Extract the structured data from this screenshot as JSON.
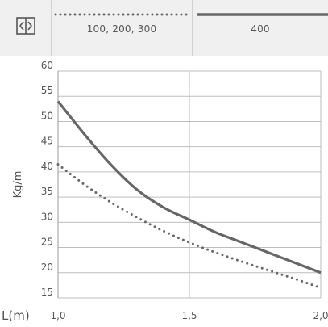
{
  "header": {
    "icon": "resize-horizontal-icon",
    "legend": [
      {
        "label": "100, 200, 300",
        "style": "dotted",
        "color": "#666666"
      },
      {
        "label": "400",
        "style": "solid",
        "color": "#666666"
      }
    ]
  },
  "chart_data": {
    "type": "line",
    "xlabel": "L(m)",
    "ylabel": "Kg/m",
    "xlim": [
      1.0,
      2.0
    ],
    "ylim": [
      15,
      60
    ],
    "xticks": [
      "1,0",
      "1,5",
      "2,0"
    ],
    "yticks": [
      15,
      20,
      25,
      30,
      35,
      40,
      45,
      50,
      55,
      60
    ],
    "grid": true,
    "series": [
      {
        "name": "100, 200, 300",
        "style": "dotted",
        "x": [
          1.0,
          1.1,
          1.2,
          1.3,
          1.4,
          1.5,
          1.6,
          1.7,
          1.8,
          1.9,
          2.0
        ],
        "y": [
          41.5,
          37.5,
          34.0,
          31.0,
          28.3,
          26.0,
          24.0,
          22.2,
          20.5,
          18.8,
          17.0
        ]
      },
      {
        "name": "400",
        "style": "solid",
        "x": [
          1.0,
          1.1,
          1.2,
          1.3,
          1.4,
          1.5,
          1.6,
          1.7,
          1.8,
          1.9,
          2.0
        ],
        "y": [
          54.0,
          47.5,
          41.5,
          36.5,
          33.0,
          30.5,
          28.0,
          26.0,
          24.0,
          22.0,
          20.0
        ]
      }
    ]
  }
}
